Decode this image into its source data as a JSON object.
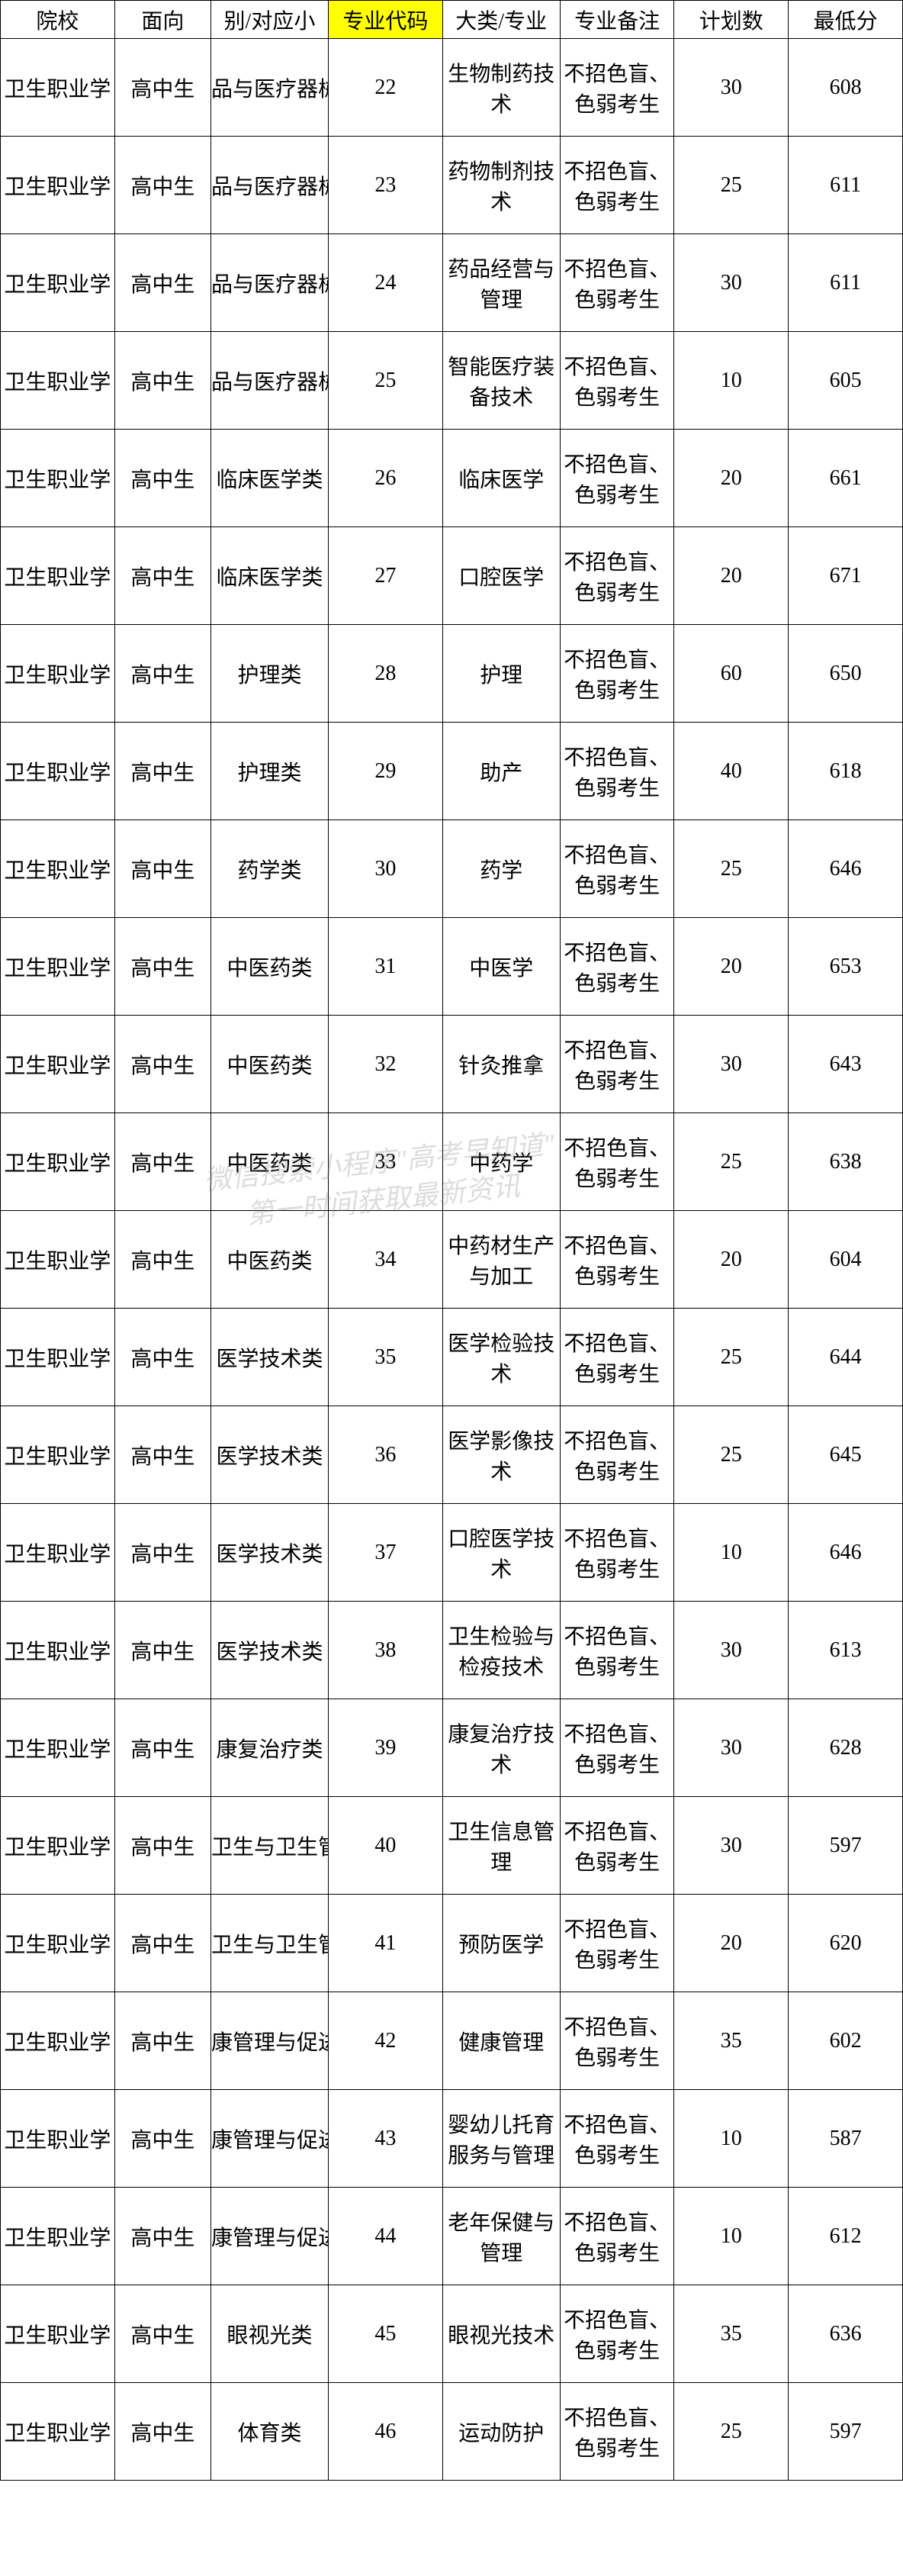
{
  "headers": {
    "school": "院校",
    "target": "面向",
    "category": "别/对应小",
    "code": "专业代码",
    "major": "大类/专业",
    "note": "专业备注",
    "plan": "计划数",
    "min": "最低分"
  },
  "common": {
    "school": "卫生职业学",
    "target": "高中生",
    "note": "不招色盲、色弱考生"
  },
  "watermark": {
    "line1": "微信搜索小程序\"高考早知道\"",
    "line2": "第一时间获取最新资讯"
  },
  "rows": [
    {
      "category": "品与医疗器械",
      "code": "22",
      "major": "生物制药技术",
      "plan": "30",
      "min": "608"
    },
    {
      "category": "品与医疗器械",
      "code": "23",
      "major": "药物制剂技术",
      "plan": "25",
      "min": "611"
    },
    {
      "category": "品与医疗器械",
      "code": "24",
      "major": "药品经营与管理",
      "plan": "30",
      "min": "611"
    },
    {
      "category": "品与医疗器械",
      "code": "25",
      "major": "智能医疗装备技术",
      "plan": "10",
      "min": "605"
    },
    {
      "category": "临床医学类",
      "code": "26",
      "major": "临床医学",
      "plan": "20",
      "min": "661"
    },
    {
      "category": "临床医学类",
      "code": "27",
      "major": "口腔医学",
      "plan": "20",
      "min": "671"
    },
    {
      "category": "护理类",
      "code": "28",
      "major": "护理",
      "plan": "60",
      "min": "650"
    },
    {
      "category": "护理类",
      "code": "29",
      "major": "助产",
      "plan": "40",
      "min": "618"
    },
    {
      "category": "药学类",
      "code": "30",
      "major": "药学",
      "plan": "25",
      "min": "646"
    },
    {
      "category": "中医药类",
      "code": "31",
      "major": "中医学",
      "plan": "20",
      "min": "653"
    },
    {
      "category": "中医药类",
      "code": "32",
      "major": "针灸推拿",
      "plan": "30",
      "min": "643"
    },
    {
      "category": "中医药类",
      "code": "33",
      "major": "中药学",
      "plan": "25",
      "min": "638"
    },
    {
      "category": "中医药类",
      "code": "34",
      "major": "中药材生产与加工",
      "plan": "20",
      "min": "604"
    },
    {
      "category": "医学技术类",
      "code": "35",
      "major": "医学检验技术",
      "plan": "25",
      "min": "644"
    },
    {
      "category": "医学技术类",
      "code": "36",
      "major": "医学影像技术",
      "plan": "25",
      "min": "645"
    },
    {
      "category": "医学技术类",
      "code": "37",
      "major": "口腔医学技术",
      "plan": "10",
      "min": "646"
    },
    {
      "category": "医学技术类",
      "code": "38",
      "major": "卫生检验与检疫技术",
      "plan": "30",
      "min": "613"
    },
    {
      "category": "康复治疗类",
      "code": "39",
      "major": "康复治疗技术",
      "plan": "30",
      "min": "628"
    },
    {
      "category": "卫生与卫生管",
      "code": "40",
      "major": "卫生信息管理",
      "plan": "30",
      "min": "597"
    },
    {
      "category": "卫生与卫生管",
      "code": "41",
      "major": "预防医学",
      "plan": "20",
      "min": "620"
    },
    {
      "category": "康管理与促进",
      "code": "42",
      "major": "健康管理",
      "plan": "35",
      "min": "602"
    },
    {
      "category": "康管理与促进",
      "code": "43",
      "major": "婴幼儿托育服务与管理",
      "plan": "10",
      "min": "587"
    },
    {
      "category": "康管理与促进",
      "code": "44",
      "major": "老年保健与管理",
      "plan": "10",
      "min": "612"
    },
    {
      "category": "眼视光类",
      "code": "45",
      "major": "眼视光技术",
      "plan": "35",
      "min": "636"
    },
    {
      "category": "体育类",
      "code": "46",
      "major": "运动防护",
      "plan": "25",
      "min": "597"
    }
  ]
}
